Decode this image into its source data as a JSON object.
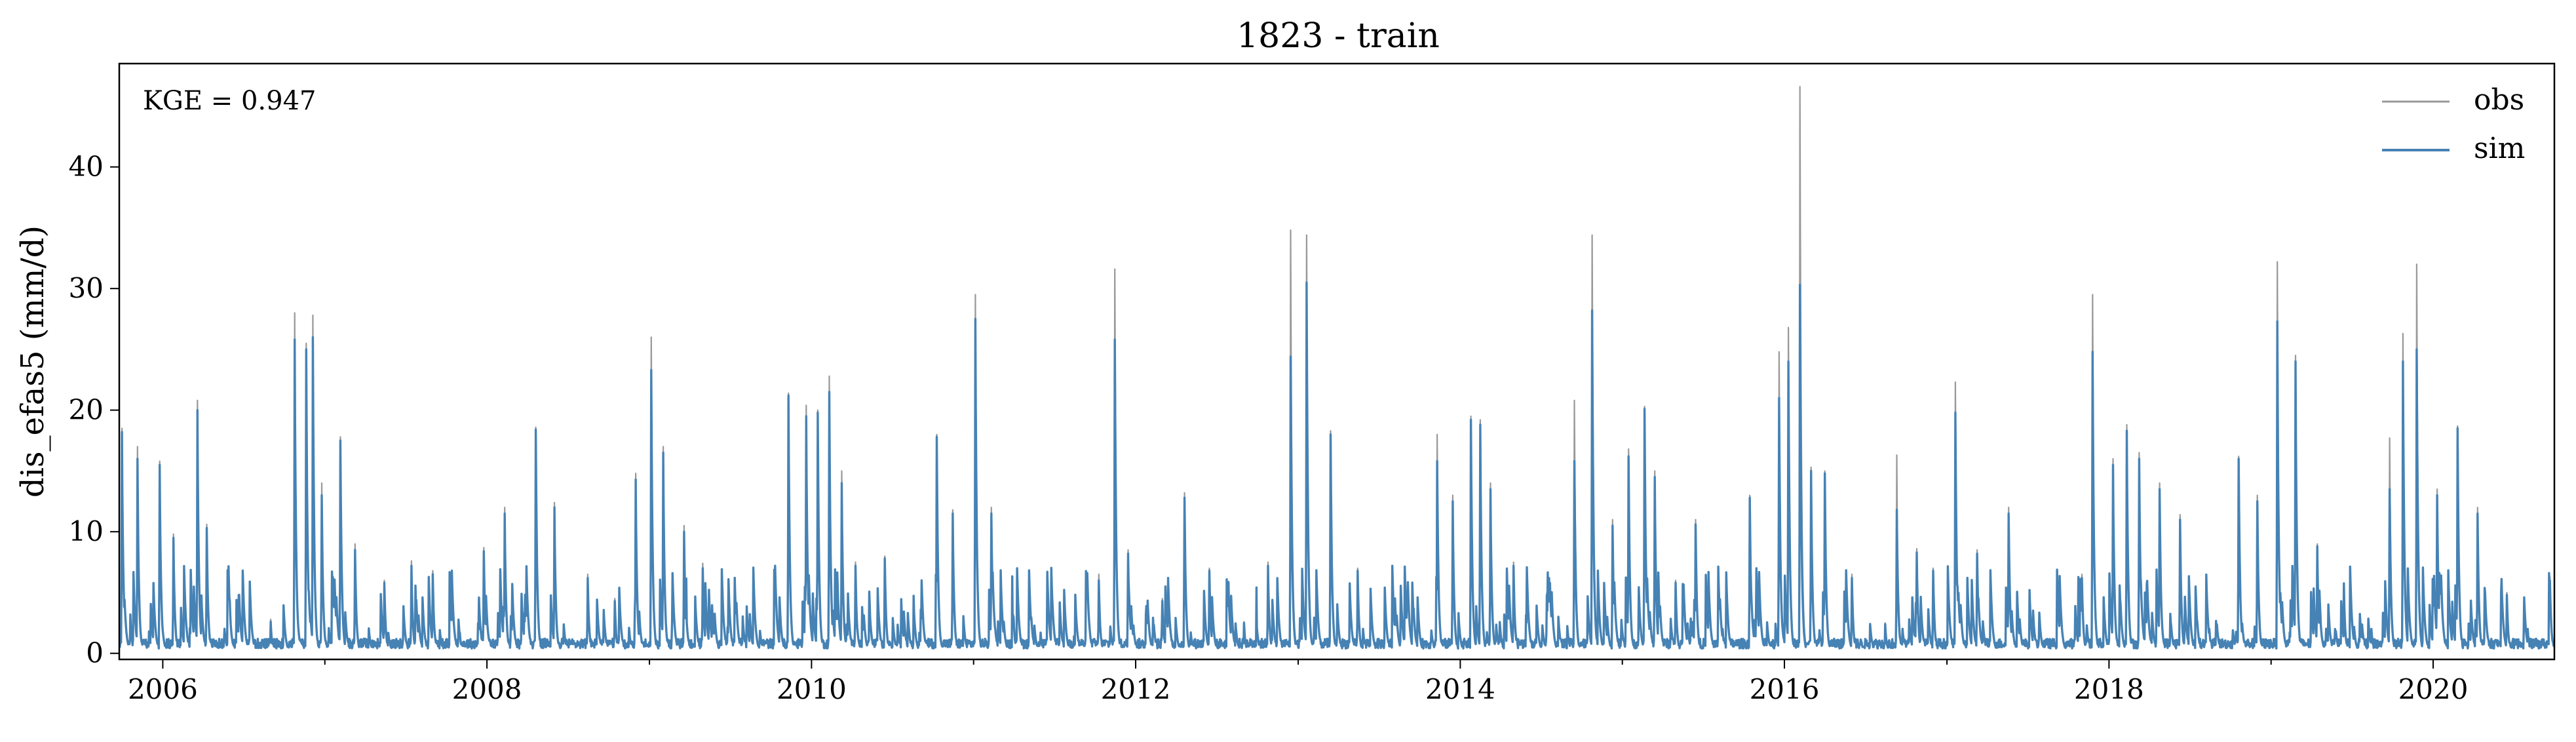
{
  "chart_data": {
    "type": "line",
    "title": "1823 - train",
    "xlabel": "",
    "ylabel": "dis_efas5 (mm/d)",
    "annotation": "KGE = 0.947",
    "xlim": [
      "2005-09-25",
      "2020-09-30"
    ],
    "ylim": [
      -0.5,
      48.5
    ],
    "x_ticks": [
      "2006",
      "2008",
      "2010",
      "2012",
      "2014",
      "2016",
      "2018",
      "2020"
    ],
    "y_ticks": [
      0,
      10,
      20,
      30,
      40
    ],
    "grid": false,
    "legend_position": "top-right",
    "colors": {
      "obs": "#999999",
      "sim": "#4682b4"
    },
    "series": [
      {
        "name": "obs",
        "points": [
          [
            "2005-10-01",
            18.5
          ],
          [
            "2005-10-20",
            3.0
          ],
          [
            "2005-11-05",
            17.0
          ],
          [
            "2005-12-01",
            1.5
          ],
          [
            "2005-12-25",
            15.8
          ],
          [
            "2006-01-25",
            9.8
          ],
          [
            "2006-03-20",
            20.8
          ],
          [
            "2006-04-10",
            10.6
          ],
          [
            "2006-06-01",
            4.5
          ],
          [
            "2006-07-15",
            1.0
          ],
          [
            "2006-09-01",
            2.8
          ],
          [
            "2006-10-25",
            28.0
          ],
          [
            "2006-11-20",
            25.5
          ],
          [
            "2006-12-05",
            27.8
          ],
          [
            "2006-12-25",
            14.0
          ],
          [
            "2007-02-05",
            17.8
          ],
          [
            "2007-03-10",
            9.0
          ],
          [
            "2007-05-15",
            6.0
          ],
          [
            "2007-07-15",
            7.6
          ],
          [
            "2007-09-01",
            6.8
          ],
          [
            "2007-11-01",
            1.5
          ],
          [
            "2007-12-25",
            8.7
          ],
          [
            "2008-02-10",
            12.0
          ],
          [
            "2008-04-20",
            18.6
          ],
          [
            "2008-06-01",
            12.4
          ],
          [
            "2008-08-15",
            6.5
          ],
          [
            "2008-10-15",
            4.5
          ],
          [
            "2008-12-01",
            14.8
          ],
          [
            "2009-01-05",
            26.0
          ],
          [
            "2009-02-01",
            17.0
          ],
          [
            "2009-03-20",
            10.5
          ],
          [
            "2009-05-01",
            7.4
          ],
          [
            "2009-07-15",
            3.5
          ],
          [
            "2009-09-15",
            0.8
          ],
          [
            "2009-11-10",
            21.4
          ],
          [
            "2009-12-20",
            20.4
          ],
          [
            "2010-01-15",
            20.0
          ],
          [
            "2010-02-10",
            22.8
          ],
          [
            "2010-03-10",
            15.0
          ],
          [
            "2010-04-10",
            7.5
          ],
          [
            "2010-06-15",
            8.0
          ],
          [
            "2010-09-01",
            1.5
          ],
          [
            "2010-10-10",
            18.0
          ],
          [
            "2010-11-15",
            11.8
          ],
          [
            "2011-01-05",
            29.5
          ],
          [
            "2011-02-10",
            12.0
          ],
          [
            "2011-04-01",
            3.2
          ],
          [
            "2011-06-01",
            1.5
          ],
          [
            "2011-08-15",
            1.2
          ],
          [
            "2011-10-10",
            6.5
          ],
          [
            "2011-11-15",
            31.6
          ],
          [
            "2011-12-15",
            8.5
          ],
          [
            "2012-03-01",
            4.5
          ],
          [
            "2012-04-20",
            13.2
          ],
          [
            "2012-06-15",
            7.0
          ],
          [
            "2012-09-01",
            2.6
          ],
          [
            "2012-10-25",
            7.5
          ],
          [
            "2012-12-15",
            34.8
          ],
          [
            "2013-01-20",
            34.4
          ],
          [
            "2013-03-15",
            18.3
          ],
          [
            "2013-05-15",
            7.0
          ],
          [
            "2013-07-15",
            3.0
          ],
          [
            "2013-09-15",
            2.0
          ],
          [
            "2013-11-10",
            18.0
          ],
          [
            "2013-12-15",
            13.0
          ],
          [
            "2014-01-25",
            19.5
          ],
          [
            "2014-02-15",
            19.2
          ],
          [
            "2014-03-10",
            14.0
          ],
          [
            "2014-05-01",
            7.5
          ],
          [
            "2014-07-15",
            5.0
          ],
          [
            "2014-09-15",
            20.8
          ],
          [
            "2014-10-25",
            34.4
          ],
          [
            "2014-12-10",
            11.0
          ],
          [
            "2015-01-15",
            16.8
          ],
          [
            "2015-02-20",
            20.3
          ],
          [
            "2015-03-15",
            15.0
          ],
          [
            "2015-05-01",
            6.0
          ],
          [
            "2015-06-15",
            11.0
          ],
          [
            "2015-08-15",
            2.0
          ],
          [
            "2015-10-15",
            13.0
          ],
          [
            "2015-12-20",
            24.8
          ],
          [
            "2016-01-10",
            26.8
          ],
          [
            "2016-02-05",
            46.6
          ],
          [
            "2016-03-01",
            15.3
          ],
          [
            "2016-04-01",
            15.0
          ],
          [
            "2016-06-01",
            6.5
          ],
          [
            "2016-08-15",
            2.5
          ],
          [
            "2016-09-10",
            16.3
          ],
          [
            "2016-10-25",
            8.6
          ],
          [
            "2016-12-01",
            7.0
          ],
          [
            "2017-01-20",
            22.3
          ],
          [
            "2017-03-10",
            8.5
          ],
          [
            "2017-05-20",
            12.0
          ],
          [
            "2017-07-15",
            3.0
          ],
          [
            "2017-09-15",
            1.5
          ],
          [
            "2017-11-01",
            6.5
          ],
          [
            "2017-11-25",
            29.5
          ],
          [
            "2018-01-10",
            16.0
          ],
          [
            "2018-02-10",
            18.8
          ],
          [
            "2018-03-10",
            16.5
          ],
          [
            "2018-04-25",
            14.0
          ],
          [
            "2018-06-10",
            11.4
          ],
          [
            "2018-08-15",
            2.0
          ],
          [
            "2018-10-20",
            16.2
          ],
          [
            "2018-12-01",
            13.0
          ],
          [
            "2019-01-15",
            32.2
          ],
          [
            "2019-02-25",
            24.5
          ],
          [
            "2019-04-15",
            9.0
          ],
          [
            "2019-06-15",
            4.0
          ],
          [
            "2019-08-15",
            2.0
          ],
          [
            "2019-09-25",
            17.7
          ],
          [
            "2019-10-25",
            26.3
          ],
          [
            "2019-11-25",
            32.0
          ],
          [
            "2020-01-10",
            13.5
          ],
          [
            "2020-02-25",
            18.7
          ],
          [
            "2020-04-10",
            12.0
          ],
          [
            "2020-06-15",
            5.0
          ],
          [
            "2020-08-01",
            2.0
          ],
          [
            "2020-09-20",
            6.3
          ]
        ]
      },
      {
        "name": "sim",
        "points": [
          [
            "2005-10-01",
            18.2
          ],
          [
            "2005-10-20",
            3.2
          ],
          [
            "2005-11-05",
            16.0
          ],
          [
            "2005-12-01",
            1.8
          ],
          [
            "2005-12-25",
            15.5
          ],
          [
            "2006-01-25",
            9.5
          ],
          [
            "2006-03-20",
            20.0
          ],
          [
            "2006-04-10",
            10.3
          ],
          [
            "2006-06-01",
            4.3
          ],
          [
            "2006-07-15",
            1.2
          ],
          [
            "2006-09-01",
            2.6
          ],
          [
            "2006-10-25",
            25.8
          ],
          [
            "2006-11-20",
            25.0
          ],
          [
            "2006-12-05",
            26.0
          ],
          [
            "2006-12-25",
            13.0
          ],
          [
            "2007-02-05",
            17.5
          ],
          [
            "2007-03-10",
            8.5
          ],
          [
            "2007-05-15",
            5.8
          ],
          [
            "2007-07-15",
            7.2
          ],
          [
            "2007-09-01",
            6.5
          ],
          [
            "2007-11-01",
            1.7
          ],
          [
            "2007-12-25",
            8.4
          ],
          [
            "2008-02-10",
            11.5
          ],
          [
            "2008-04-20",
            18.4
          ],
          [
            "2008-06-01",
            12.0
          ],
          [
            "2008-08-15",
            6.2
          ],
          [
            "2008-10-15",
            4.3
          ],
          [
            "2008-12-01",
            14.3
          ],
          [
            "2009-01-05",
            23.3
          ],
          [
            "2009-02-01",
            16.5
          ],
          [
            "2009-03-20",
            10.0
          ],
          [
            "2009-05-01",
            7.0
          ],
          [
            "2009-07-15",
            3.3
          ],
          [
            "2009-09-15",
            1.0
          ],
          [
            "2009-11-10",
            21.2
          ],
          [
            "2009-12-20",
            19.5
          ],
          [
            "2010-01-15",
            19.8
          ],
          [
            "2010-02-10",
            21.5
          ],
          [
            "2010-03-10",
            14.0
          ],
          [
            "2010-04-10",
            7.2
          ],
          [
            "2010-06-15",
            7.8
          ],
          [
            "2010-09-01",
            1.7
          ],
          [
            "2010-10-10",
            17.8
          ],
          [
            "2010-11-15",
            11.5
          ],
          [
            "2011-01-05",
            27.5
          ],
          [
            "2011-02-10",
            11.5
          ],
          [
            "2011-04-01",
            3.0
          ],
          [
            "2011-06-01",
            1.7
          ],
          [
            "2011-08-15",
            1.4
          ],
          [
            "2011-10-10",
            6.0
          ],
          [
            "2011-11-15",
            25.8
          ],
          [
            "2011-12-15",
            8.2
          ],
          [
            "2012-03-01",
            4.3
          ],
          [
            "2012-04-20",
            12.8
          ],
          [
            "2012-06-15",
            6.8
          ],
          [
            "2012-09-01",
            2.5
          ],
          [
            "2012-10-25",
            7.2
          ],
          [
            "2012-12-15",
            24.4
          ],
          [
            "2013-01-20",
            30.5
          ],
          [
            "2013-03-15",
            18.0
          ],
          [
            "2013-05-15",
            6.8
          ],
          [
            "2013-07-15",
            2.8
          ],
          [
            "2013-09-15",
            2.0
          ],
          [
            "2013-11-10",
            15.8
          ],
          [
            "2013-12-15",
            12.5
          ],
          [
            "2014-01-25",
            19.2
          ],
          [
            "2014-02-15",
            18.8
          ],
          [
            "2014-03-10",
            13.5
          ],
          [
            "2014-05-01",
            7.2
          ],
          [
            "2014-07-15",
            4.8
          ],
          [
            "2014-09-15",
            15.8
          ],
          [
            "2014-10-25",
            28.2
          ],
          [
            "2014-12-10",
            10.5
          ],
          [
            "2015-01-15",
            16.2
          ],
          [
            "2015-02-20",
            20.1
          ],
          [
            "2015-03-15",
            14.5
          ],
          [
            "2015-05-01",
            5.8
          ],
          [
            "2015-06-15",
            10.6
          ],
          [
            "2015-08-15",
            2.0
          ],
          [
            "2015-10-15",
            12.8
          ],
          [
            "2015-12-20",
            21.0
          ],
          [
            "2016-01-10",
            24.0
          ],
          [
            "2016-02-05",
            30.3
          ],
          [
            "2016-03-01",
            15.0
          ],
          [
            "2016-04-01",
            14.8
          ],
          [
            "2016-06-01",
            6.2
          ],
          [
            "2016-08-15",
            2.4
          ],
          [
            "2016-09-10",
            11.8
          ],
          [
            "2016-10-25",
            8.3
          ],
          [
            "2016-12-01",
            6.8
          ],
          [
            "2017-01-20",
            19.8
          ],
          [
            "2017-03-10",
            8.2
          ],
          [
            "2017-05-20",
            11.5
          ],
          [
            "2017-07-15",
            2.8
          ],
          [
            "2017-09-15",
            1.6
          ],
          [
            "2017-11-01",
            6.2
          ],
          [
            "2017-11-25",
            24.8
          ],
          [
            "2018-01-10",
            15.5
          ],
          [
            "2018-02-10",
            18.3
          ],
          [
            "2018-03-10",
            16.0
          ],
          [
            "2018-04-25",
            13.5
          ],
          [
            "2018-06-10",
            11.0
          ],
          [
            "2018-08-15",
            2.0
          ],
          [
            "2018-10-20",
            16.0
          ],
          [
            "2018-12-01",
            12.5
          ],
          [
            "2019-01-15",
            27.3
          ],
          [
            "2019-02-25",
            24.0
          ],
          [
            "2019-04-15",
            8.8
          ],
          [
            "2019-06-15",
            3.8
          ],
          [
            "2019-08-15",
            2.0
          ],
          [
            "2019-09-25",
            13.5
          ],
          [
            "2019-10-25",
            24.0
          ],
          [
            "2019-11-25",
            25.0
          ],
          [
            "2020-01-10",
            13.0
          ],
          [
            "2020-02-25",
            18.5
          ],
          [
            "2020-04-10",
            11.5
          ],
          [
            "2020-06-15",
            4.8
          ],
          [
            "2020-08-01",
            2.0
          ],
          [
            "2020-09-20",
            6.0
          ]
        ]
      }
    ]
  }
}
